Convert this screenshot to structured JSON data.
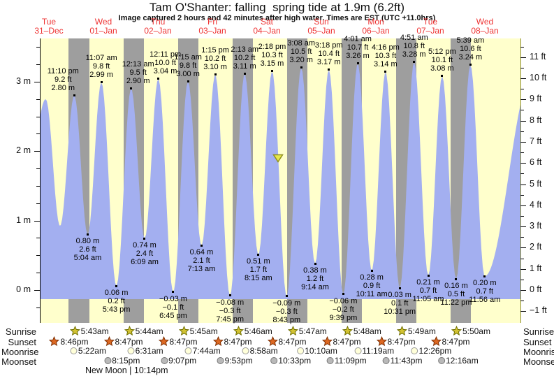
{
  "title": "Tam O'Shanter: falling  spring tide at 1.9m (6.2ft)",
  "subtitle": "Image captured 2 hours and 42 minutes after high water. Times are EST (UTC +11.0hrs)",
  "days": [
    {
      "name": "Tue",
      "date": "31–Dec"
    },
    {
      "name": "Wed",
      "date": "01–Jan"
    },
    {
      "name": "Thu",
      "date": "02–Jan"
    },
    {
      "name": "Fri",
      "date": "03–Jan"
    },
    {
      "name": "Sat",
      "date": "04–Jan"
    },
    {
      "name": "Sun",
      "date": "05–Jan"
    },
    {
      "name": "Mon",
      "date": "06–Jan"
    },
    {
      "name": "Tue",
      "date": "07–Jan"
    },
    {
      "name": "Wed",
      "date": "08–Jan"
    }
  ],
  "chart_data": {
    "type": "area",
    "title": "Tam O'Shanter tide heights",
    "y_axis_left": {
      "unit": "m",
      "tick_labels": [
        "0 m",
        "1 m",
        "2 m",
        "3 m"
      ]
    },
    "y_axis_right": {
      "unit": "ft",
      "tick_labels": [
        "-1 ft",
        "0 ft",
        "1 ft",
        "2 ft",
        "3 ft",
        "4 ft",
        "5 ft",
        "6 ft",
        "7 ft",
        "8 ft",
        "9 ft",
        "10 ft",
        "11 ft"
      ]
    },
    "tide_events": [
      {
        "day": 0,
        "time": "11:10 pm",
        "type": "high",
        "m": "2.80",
        "ft": "9.2"
      },
      {
        "day": 1,
        "time": "5:04 am",
        "type": "low",
        "m": "0.80",
        "ft": "2.6"
      },
      {
        "day": 1,
        "time": "11:07 am",
        "type": "high",
        "m": "2.99",
        "ft": "9.8"
      },
      {
        "day": 1,
        "time": "5:43 pm",
        "type": "low",
        "m": "0.06",
        "ft": "0.2"
      },
      {
        "day": 2,
        "time": "12:13 am",
        "type": "high",
        "m": "2.90",
        "ft": "9.5"
      },
      {
        "day": 2,
        "time": "6:09 am",
        "type": "low",
        "m": "0.74",
        "ft": "2.4"
      },
      {
        "day": 2,
        "time": "12:11 pm",
        "type": "high",
        "m": "3.04",
        "ft": "10.0"
      },
      {
        "day": 2,
        "time": "6:45 pm",
        "type": "low",
        "m": "-0.03",
        "ft": "-0.1"
      },
      {
        "day": 3,
        "time": "1:15 am",
        "type": "high",
        "m": "3.00",
        "ft": "9.8"
      },
      {
        "day": 3,
        "time": "7:13 am",
        "type": "low",
        "m": "0.64",
        "ft": "2.1"
      },
      {
        "day": 3,
        "time": "1:15 pm",
        "type": "high",
        "m": "3.10",
        "ft": "10.2"
      },
      {
        "day": 3,
        "time": "7:45 pm",
        "type": "low",
        "m": "-0.08",
        "ft": "-0.3"
      },
      {
        "day": 4,
        "time": "2:13 am",
        "type": "high",
        "m": "3.11",
        "ft": "10.2"
      },
      {
        "day": 4,
        "time": "8:15 am",
        "type": "low",
        "m": "0.51",
        "ft": "1.7"
      },
      {
        "day": 4,
        "time": "2:18 pm",
        "type": "high",
        "m": "3.15",
        "ft": "10.3"
      },
      {
        "day": 4,
        "time": "8:43 pm",
        "type": "low",
        "m": "-0.09",
        "ft": "-0.3"
      },
      {
        "day": 5,
        "time": "3:08 am",
        "type": "high",
        "m": "3.20",
        "ft": "10.5"
      },
      {
        "day": 5,
        "time": "9:14 am",
        "type": "low",
        "m": "0.38",
        "ft": "1.2"
      },
      {
        "day": 5,
        "time": "3:18 pm",
        "type": "high",
        "m": "3.17",
        "ft": "10.4"
      },
      {
        "day": 5,
        "time": "9:39 pm",
        "type": "low",
        "m": "-0.06",
        "ft": "-0.2"
      },
      {
        "day": 6,
        "time": "4:01 am",
        "type": "high",
        "m": "3.26",
        "ft": "10.7"
      },
      {
        "day": 6,
        "time": "10:11 am",
        "type": "low",
        "m": "0.28",
        "ft": "0.9"
      },
      {
        "day": 6,
        "time": "4:16 pm",
        "type": "high",
        "m": "3.14",
        "ft": "10.3"
      },
      {
        "day": 6,
        "time": "10:31 pm",
        "type": "low",
        "m": "0.03",
        "ft": "0.1"
      },
      {
        "day": 7,
        "time": "4:51 am",
        "type": "high",
        "m": "3.28",
        "ft": "10.8"
      },
      {
        "day": 7,
        "time": "11:05 am",
        "type": "low",
        "m": "0.21",
        "ft": "0.7"
      },
      {
        "day": 7,
        "time": "5:12 pm",
        "type": "high",
        "m": "3.08",
        "ft": "10.1"
      },
      {
        "day": 7,
        "time": "11:22 pm",
        "type": "low",
        "m": "0.16",
        "ft": "0.5"
      },
      {
        "day": 8,
        "time": "5:39 am",
        "type": "high",
        "m": "3.24",
        "ft": "10.6"
      },
      {
        "day": 8,
        "time": "11:56 am",
        "type": "low",
        "m": "0.20",
        "ft": "0.7"
      }
    ],
    "current_marker": {
      "day": 4,
      "time": "5:00 pm",
      "level_m": "1.9"
    }
  },
  "astro": {
    "rows": [
      {
        "label": "Sunrise",
        "icon": "sunrise-star-icon",
        "times": [
          {
            "day": 1,
            "time": "5:43am"
          },
          {
            "day": 2,
            "time": "5:44am"
          },
          {
            "day": 3,
            "time": "5:45am"
          },
          {
            "day": 4,
            "time": "5:46am"
          },
          {
            "day": 5,
            "time": "5:47am"
          },
          {
            "day": 6,
            "time": "5:48am"
          },
          {
            "day": 7,
            "time": "5:49am"
          },
          {
            "day": 8,
            "time": "5:50am"
          }
        ]
      },
      {
        "label": "Sunset",
        "icon": "sunset-star-icon",
        "times": [
          {
            "day": 0,
            "time": "8:46pm"
          },
          {
            "day": 1,
            "time": "8:47pm"
          },
          {
            "day": 2,
            "time": "8:47pm"
          },
          {
            "day": 3,
            "time": "8:47pm"
          },
          {
            "day": 4,
            "time": "8:47pm"
          },
          {
            "day": 5,
            "time": "8:47pm"
          },
          {
            "day": 6,
            "time": "8:47pm"
          },
          {
            "day": 7,
            "time": "8:47pm"
          }
        ]
      },
      {
        "label": "Moonrise",
        "icon": "moonrise-icon",
        "times": [
          {
            "day": 1,
            "time": "5:22am"
          },
          {
            "day": 2,
            "time": "6:31am"
          },
          {
            "day": 3,
            "time": "7:44am"
          },
          {
            "day": 4,
            "time": "8:58am"
          },
          {
            "day": 5,
            "time": "10:10am"
          },
          {
            "day": 6,
            "time": "11:19am"
          },
          {
            "day": 7,
            "time": "12:26pm"
          }
        ]
      },
      {
        "label": "Moonset",
        "icon": "moonset-icon",
        "times": [
          {
            "day": 1,
            "time": "8:15pm"
          },
          {
            "day": 2,
            "time": "9:07pm"
          },
          {
            "day": 3,
            "time": "9:53pm"
          },
          {
            "day": 4,
            "time": "10:33pm"
          },
          {
            "day": 5,
            "time": "11:09pm"
          },
          {
            "day": 6,
            "time": "11:43pm"
          },
          {
            "day": 8,
            "time": "12:16am"
          }
        ]
      }
    ],
    "moon_phase": {
      "label": "New Moon",
      "time": "10:14pm",
      "day": 1
    }
  },
  "colors": {
    "plot_day": "#ffffcc",
    "plot_night": "#9e9e9e",
    "tide_fill": "#a3aff0",
    "date_red": "#ee3333",
    "marker_fill": "#e8e84a",
    "marker_stroke": "#8f8f20",
    "sunrise_star": "#d2c232",
    "sunrise_star_edge": "#6f6f00",
    "sunset_star": "#dd6822",
    "sunset_star_edge": "#7d2d00",
    "moonrise_circle": "#ffffd9",
    "moonrise_circle_edge": "#999999",
    "moonset_circle": "#b9b9b9",
    "moonset_circle_edge": "#777777",
    "left_axis_line": "#000000",
    "right_axis_line": "#8a8a2a"
  }
}
